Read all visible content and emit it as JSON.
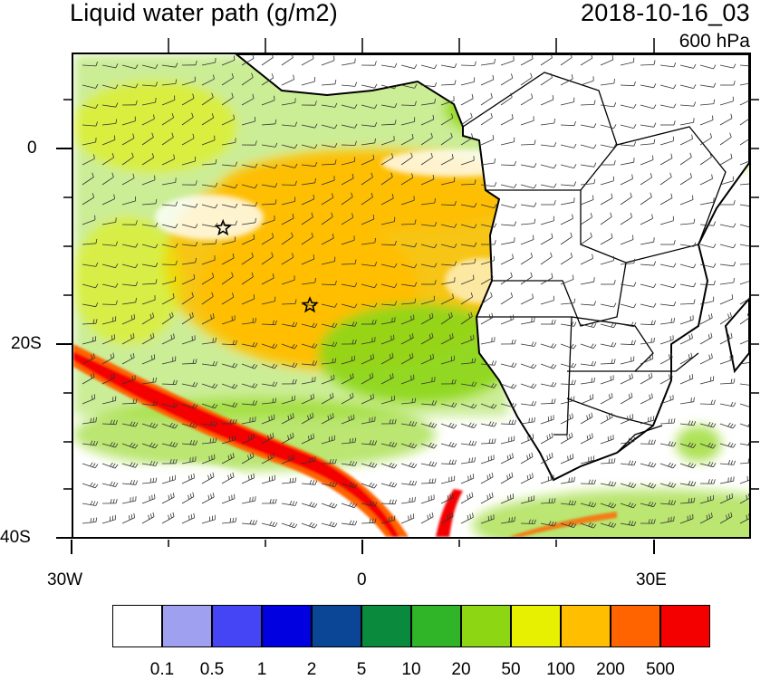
{
  "header": {
    "title": "Liquid water path (g/m2)",
    "datetime": "2018-10-16_03",
    "level": "600 hPa"
  },
  "map": {
    "lon_range": [
      -30,
      40
    ],
    "lat_range": [
      -40,
      10
    ],
    "y_tick_labels": [
      "0",
      "20S",
      "40S"
    ],
    "x_tick_labels": [
      "30W",
      "0",
      "30E"
    ],
    "markers": [
      {
        "label": "star-1",
        "lon": -14.5,
        "lat": -8
      },
      {
        "label": "star-2",
        "lon": -5.5,
        "lat": -16
      }
    ]
  },
  "colorbar": {
    "labels": [
      "0.1",
      "0.5",
      "1",
      "2",
      "5",
      "10",
      "20",
      "50",
      "100",
      "200",
      "500"
    ],
    "colors": [
      "#ffffff",
      "#a0a0f0",
      "#4545f5",
      "#0000e0",
      "#0a4596",
      "#0a8a3c",
      "#30b428",
      "#8cd614",
      "#e6f000",
      "#ffbe00",
      "#ff6400",
      "#f50000"
    ]
  }
}
